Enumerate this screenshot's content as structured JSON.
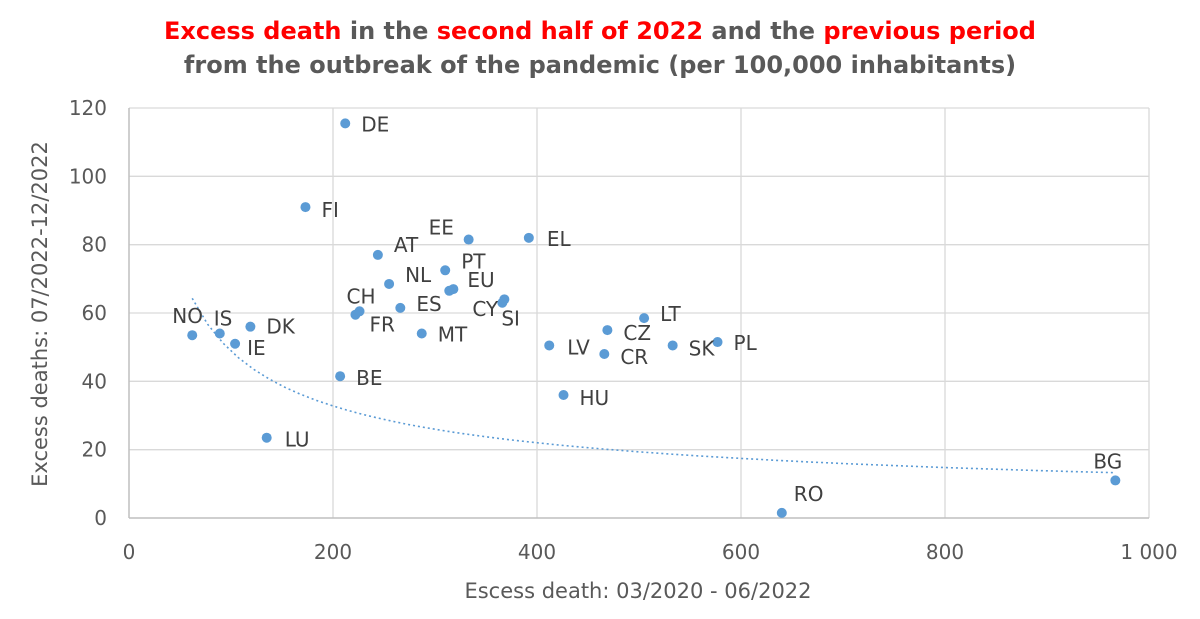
{
  "chart_data": {
    "type": "scatter",
    "title_parts": [
      {
        "text": "Excess death",
        "color": "#ff0000"
      },
      {
        "text": " in the ",
        "color": "#595959"
      },
      {
        "text": "second half of 2022",
        "color": "#ff0000"
      },
      {
        "text": " and the ",
        "color": "#595959"
      },
      {
        "text": "previous period",
        "color": "#ff0000"
      }
    ],
    "subtitle": "from the outbreak of the pandemic (per 100,000 inhabitants)",
    "xlabel": "Escess death: 03/2020 - 06/2022",
    "ylabel": "Excess deaths: 07/2022-12/2022",
    "xlim": [
      0,
      1000
    ],
    "ylim": [
      0,
      120
    ],
    "x_ticks": [
      0,
      200,
      400,
      600,
      800,
      1000
    ],
    "x_tick_labels": [
      "0",
      "200",
      "400",
      "600",
      "800",
      "1 000"
    ],
    "y_ticks": [
      0,
      20,
      40,
      60,
      80,
      100,
      120
    ],
    "y_tick_labels": [
      "0",
      "20",
      "40",
      "60",
      "80",
      "100",
      "120"
    ],
    "grid": true,
    "point_color": "#5b9bd5",
    "points": [
      {
        "label": "DE",
        "x": 212,
        "y": 115.5
      },
      {
        "label": "FI",
        "x": 173,
        "y": 91
      },
      {
        "label": "EE",
        "x": 333,
        "y": 81.5
      },
      {
        "label": "EL",
        "x": 392,
        "y": 82
      },
      {
        "label": "AT",
        "x": 244,
        "y": 77
      },
      {
        "label": "PT",
        "x": 310,
        "y": 72.5
      },
      {
        "label": "NL",
        "x": 255,
        "y": 68.5
      },
      {
        "label": "EU",
        "x": 318,
        "y": 67
      },
      {
        "label": "EU2",
        "x": 314,
        "y": 66.5
      },
      {
        "label": "CY",
        "x": 366,
        "y": 63
      },
      {
        "label": "SI",
        "x": 368,
        "y": 64
      },
      {
        "label": "CH",
        "x": 226,
        "y": 60.5
      },
      {
        "label": "FR",
        "x": 222,
        "y": 59.5
      },
      {
        "label": "ES",
        "x": 266,
        "y": 61.5
      },
      {
        "label": "MT",
        "x": 287,
        "y": 54
      },
      {
        "label": "NO",
        "x": 62,
        "y": 53.5
      },
      {
        "label": "IS",
        "x": 89,
        "y": 54
      },
      {
        "label": "DK",
        "x": 119,
        "y": 56
      },
      {
        "label": "IE",
        "x": 104,
        "y": 51
      },
      {
        "label": "BE",
        "x": 207,
        "y": 41.5
      },
      {
        "label": "LU",
        "x": 135,
        "y": 23.5
      },
      {
        "label": "LT",
        "x": 505,
        "y": 58.5
      },
      {
        "label": "CZ",
        "x": 469,
        "y": 55
      },
      {
        "label": "CR",
        "x": 466,
        "y": 48
      },
      {
        "label": "LV",
        "x": 412,
        "y": 50.5
      },
      {
        "label": "SK",
        "x": 533,
        "y": 50.5
      },
      {
        "label": "PL",
        "x": 577,
        "y": 51.5
      },
      {
        "label": "HU",
        "x": 426,
        "y": 36
      },
      {
        "label": "RO",
        "x": 640,
        "y": 1.5
      },
      {
        "label": "BG",
        "x": 967,
        "y": 11
      }
    ],
    "trendline": {
      "type": "power",
      "a": 690,
      "b": -0.575,
      "x_range": [
        62,
        967
      ],
      "style": "dotted",
      "color": "#5b9bd5"
    }
  },
  "labels_shown": {
    "DE": "DE",
    "FI": "FI",
    "EE": "EE",
    "EL": "EL",
    "AT": "AT",
    "PT": "PT",
    "NL": "NL",
    "EU": "EU",
    "CY": "CY",
    "SI": "SI",
    "CH": "CH",
    "FR": "FR",
    "ES": "ES",
    "MT": "MT",
    "NO": "NO",
    "IS": "IS",
    "DK": "DK",
    "IE": "IE",
    "BE": "BE",
    "LU": "LU",
    "LT": "LT",
    "CZ": "CZ",
    "CR": "CR",
    "LV": "LV",
    "SK": "SK",
    "PL": "PL",
    "HU": "HU",
    "RO": "RO",
    "BG": "BG"
  }
}
